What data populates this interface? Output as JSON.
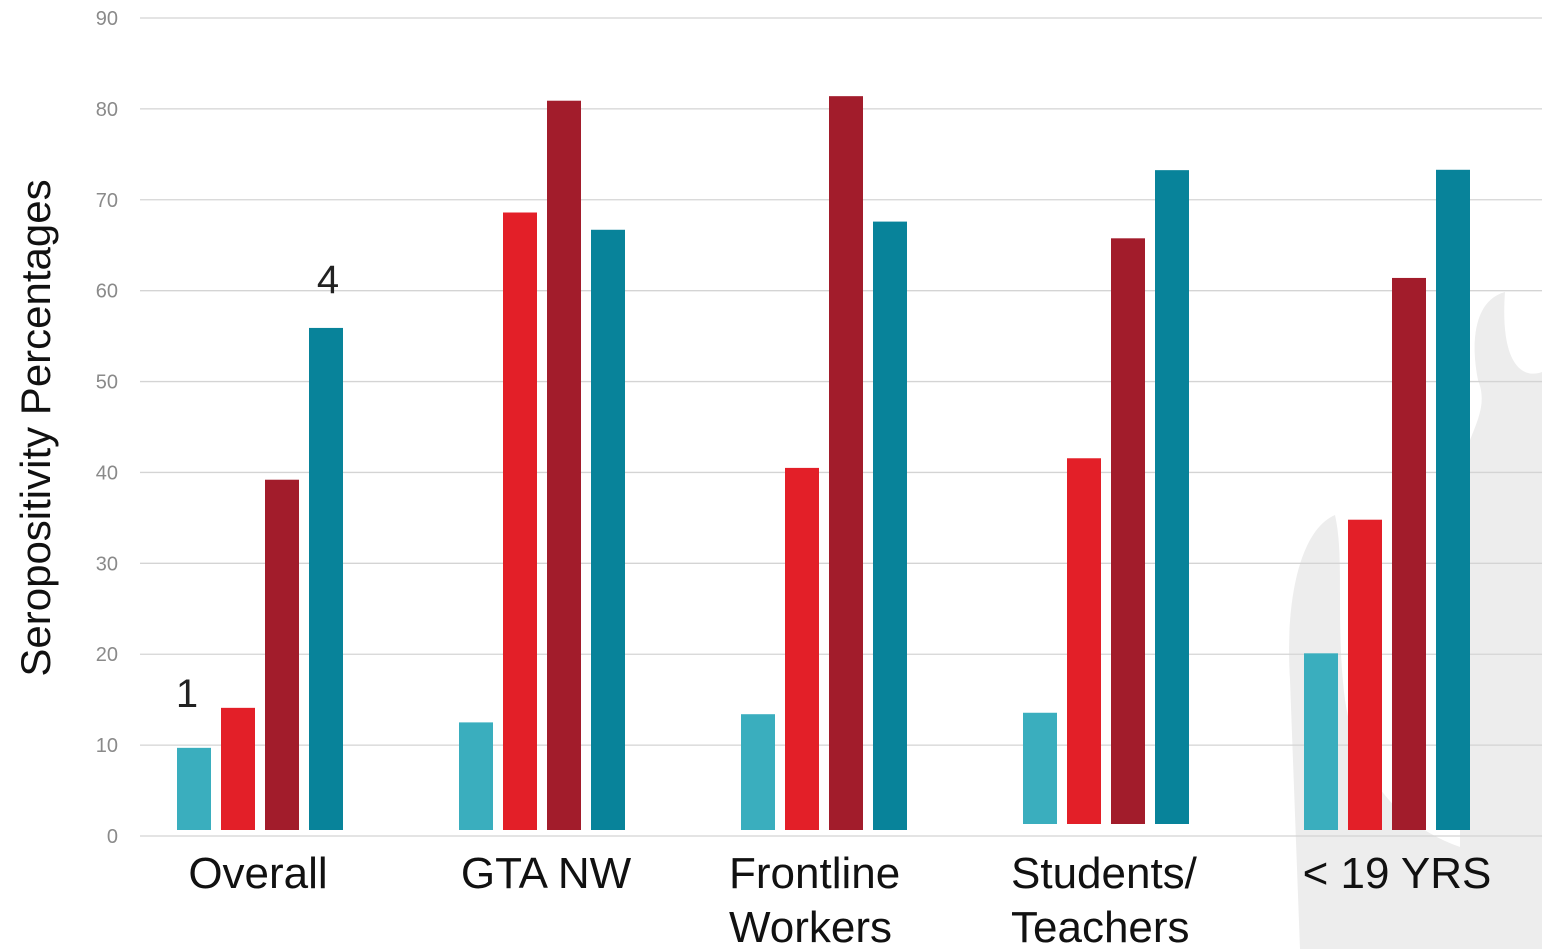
{
  "chart_data": {
    "type": "bar",
    "title": "",
    "ylabel": "Seropositivity Percentages",
    "xlabel": "",
    "ylim": [
      0,
      90
    ],
    "yticks": [
      0,
      10,
      20,
      30,
      40,
      50,
      60,
      70,
      80,
      90
    ],
    "grid": true,
    "categories": [
      [
        "Overall"
      ],
      [
        "GTA NW"
      ],
      [
        "Frontline",
        "Workers"
      ],
      [
        "Students/",
        "Teachers"
      ],
      [
        "< 19 YRS"
      ]
    ],
    "series": [
      {
        "values": [
          9.7,
          12.5,
          13.4,
          12.9,
          20.1
        ],
        "color": "#3aaebe"
      },
      {
        "values": [
          14.1,
          68.6,
          40.5,
          40.9,
          34.8
        ],
        "color": "#e31f28"
      },
      {
        "values": [
          39.2,
          80.9,
          81.4,
          65.1,
          61.4
        ],
        "color": "#a21c2b"
      },
      {
        "values": [
          55.9,
          66.7,
          67.6,
          72.6,
          73.3
        ],
        "color": "#08839a"
      }
    ],
    "annotations": [
      "1",
      "4"
    ]
  },
  "background": {
    "watermark_color": "#ededed"
  }
}
